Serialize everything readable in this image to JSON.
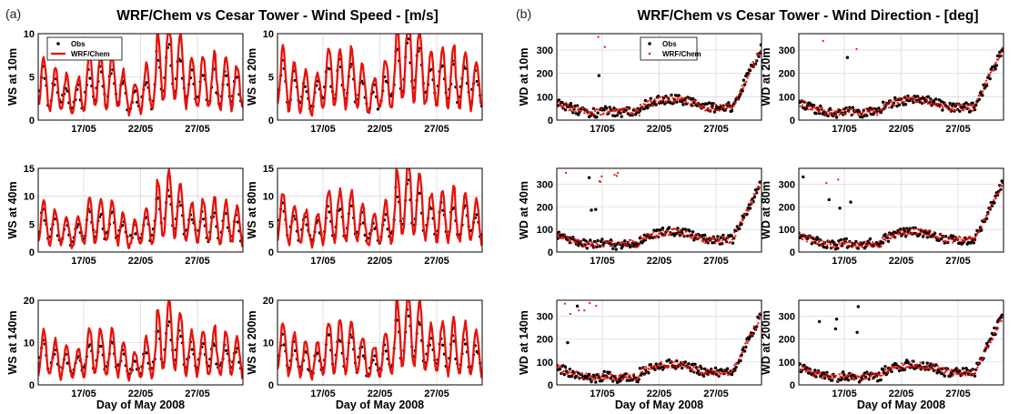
{
  "figure": {
    "panel_a_letter": "(a)",
    "panel_b_letter": "(b)",
    "title_a": "WRF/Chem vs Cesar Tower - Wind Speed - [m/s]",
    "title_b": "WRF/Chem vs Cesar Tower - Wind Direction - [deg]",
    "xlabel": "Day of May 2008",
    "obs_color": "#000000",
    "model_color": "#e8120c"
  },
  "chart_data": [
    {
      "id": "ws10",
      "type": "line",
      "ylabel": "WS at 10m",
      "variable": "ws",
      "ylim": [
        0,
        10
      ],
      "yticks": [
        0,
        5,
        10
      ],
      "xlim": [
        13,
        31
      ],
      "xticks": [
        17,
        22,
        27
      ],
      "xticklabels": [
        "17/05",
        "22/05",
        "27/05"
      ],
      "grid": true,
      "legend": {
        "placement": "top-left",
        "entries": [
          "Obs",
          "WRF/Chem"
        ]
      },
      "series": [
        {
          "name": "Obs",
          "style": "markers"
        },
        {
          "name": "WRF/Chem",
          "style": "line"
        }
      ]
    },
    {
      "id": "ws20",
      "type": "line",
      "ylabel": "WS at 20m",
      "variable": "ws",
      "ylim": [
        0,
        10
      ],
      "yticks": [
        0,
        5,
        10
      ],
      "xlim": [
        13,
        31
      ],
      "xticks": [
        17,
        22,
        27
      ],
      "xticklabels": [
        "17/05",
        "22/05",
        "27/05"
      ],
      "grid": true,
      "series": [
        {
          "name": "Obs",
          "style": "markers"
        },
        {
          "name": "WRF/Chem",
          "style": "line"
        }
      ]
    },
    {
      "id": "ws40",
      "type": "line",
      "ylabel": "WS at 40m",
      "variable": "ws",
      "ylim": [
        0,
        15
      ],
      "yticks": [
        0,
        5,
        10,
        15
      ],
      "xlim": [
        13,
        31
      ],
      "xticks": [
        17,
        22,
        27
      ],
      "xticklabels": [
        "17/05",
        "22/05",
        "27/05"
      ],
      "grid": true,
      "series": [
        {
          "name": "Obs",
          "style": "markers"
        },
        {
          "name": "WRF/Chem",
          "style": "line"
        }
      ]
    },
    {
      "id": "ws80",
      "type": "line",
      "ylabel": "WS at 80m",
      "variable": "ws",
      "ylim": [
        0,
        15
      ],
      "yticks": [
        0,
        5,
        10,
        15
      ],
      "xlim": [
        13,
        31
      ],
      "xticks": [
        17,
        22,
        27
      ],
      "xticklabels": [
        "17/05",
        "22/05",
        "27/05"
      ],
      "grid": true,
      "series": [
        {
          "name": "Obs",
          "style": "markers"
        },
        {
          "name": "WRF/Chem",
          "style": "line"
        }
      ]
    },
    {
      "id": "ws140",
      "type": "line",
      "ylabel": "WS at 140m",
      "variable": "ws",
      "ylim": [
        0,
        20
      ],
      "yticks": [
        0,
        10,
        20
      ],
      "xlim": [
        13,
        31
      ],
      "xticks": [
        17,
        22,
        27
      ],
      "xticklabels": [
        "17/05",
        "22/05",
        "27/05"
      ],
      "grid": true,
      "series": [
        {
          "name": "Obs",
          "style": "markers"
        },
        {
          "name": "WRF/Chem",
          "style": "line"
        }
      ]
    },
    {
      "id": "ws200",
      "type": "line",
      "ylabel": "WS at 200m",
      "variable": "ws",
      "ylim": [
        0,
        20
      ],
      "yticks": [
        0,
        10,
        20
      ],
      "xlim": [
        13,
        31
      ],
      "xticks": [
        17,
        22,
        27
      ],
      "xticklabels": [
        "17/05",
        "22/05",
        "27/05"
      ],
      "grid": true,
      "series": [
        {
          "name": "Obs",
          "style": "markers"
        },
        {
          "name": "WRF/Chem",
          "style": "line"
        }
      ]
    },
    {
      "id": "wd10",
      "type": "scatter",
      "ylabel": "WD at 10m",
      "variable": "wd",
      "ylim": [
        0,
        370
      ],
      "yticks": [
        0,
        100,
        200,
        300
      ],
      "xlim": [
        13,
        31
      ],
      "xticks": [
        17,
        22,
        27
      ],
      "xticklabels": [
        "17/05",
        "22/05",
        "27/05"
      ],
      "grid": true,
      "legend": {
        "placement": "top-center",
        "entries": [
          "Obs",
          "WRF/Chem"
        ]
      },
      "series": [
        {
          "name": "Obs",
          "style": "markers"
        },
        {
          "name": "WRF/Chem",
          "style": "markers"
        }
      ]
    },
    {
      "id": "wd20",
      "type": "scatter",
      "ylabel": "WD at 20m",
      "variable": "wd",
      "ylim": [
        0,
        370
      ],
      "yticks": [
        0,
        100,
        200,
        300
      ],
      "xlim": [
        13,
        31
      ],
      "xticks": [
        17,
        22,
        27
      ],
      "xticklabels": [
        "17/05",
        "22/05",
        "27/05"
      ],
      "grid": true,
      "series": [
        {
          "name": "Obs",
          "style": "markers"
        },
        {
          "name": "WRF/Chem",
          "style": "markers"
        }
      ]
    },
    {
      "id": "wd40",
      "type": "scatter",
      "ylabel": "WD at 40m",
      "variable": "wd",
      "ylim": [
        0,
        370
      ],
      "yticks": [
        0,
        100,
        200,
        300
      ],
      "xlim": [
        13,
        31
      ],
      "xticks": [
        17,
        22,
        27
      ],
      "xticklabels": [
        "17/05",
        "22/05",
        "27/05"
      ],
      "grid": true,
      "series": [
        {
          "name": "Obs",
          "style": "markers"
        },
        {
          "name": "WRF/Chem",
          "style": "markers"
        }
      ]
    },
    {
      "id": "wd80",
      "type": "scatter",
      "ylabel": "WD at 80m",
      "variable": "wd",
      "ylim": [
        0,
        370
      ],
      "yticks": [
        0,
        100,
        200,
        300
      ],
      "xlim": [
        13,
        31
      ],
      "xticks": [
        17,
        22,
        27
      ],
      "xticklabels": [
        "17/05",
        "22/05",
        "27/05"
      ],
      "grid": true,
      "series": [
        {
          "name": "Obs",
          "style": "markers"
        },
        {
          "name": "WRF/Chem",
          "style": "markers"
        }
      ]
    },
    {
      "id": "wd140",
      "type": "scatter",
      "ylabel": "WD at 140m",
      "variable": "wd",
      "ylim": [
        0,
        370
      ],
      "yticks": [
        0,
        100,
        200,
        300
      ],
      "xlim": [
        13,
        31
      ],
      "xticks": [
        17,
        22,
        27
      ],
      "xticklabels": [
        "17/05",
        "22/05",
        "27/05"
      ],
      "grid": true,
      "series": [
        {
          "name": "Obs",
          "style": "markers"
        },
        {
          "name": "WRF/Chem",
          "style": "markers"
        }
      ]
    },
    {
      "id": "wd200",
      "type": "scatter",
      "ylabel": "WD at 200m",
      "variable": "wd",
      "ylim": [
        0,
        370
      ],
      "yticks": [
        0,
        100,
        200,
        300
      ],
      "xlim": [
        13,
        31
      ],
      "xticks": [
        17,
        22,
        27
      ],
      "xticklabels": [
        "17/05",
        "22/05",
        "27/05"
      ],
      "grid": true,
      "series": [
        {
          "name": "Obs",
          "style": "markers"
        },
        {
          "name": "WRF/Chem",
          "style": "markers"
        }
      ]
    }
  ]
}
